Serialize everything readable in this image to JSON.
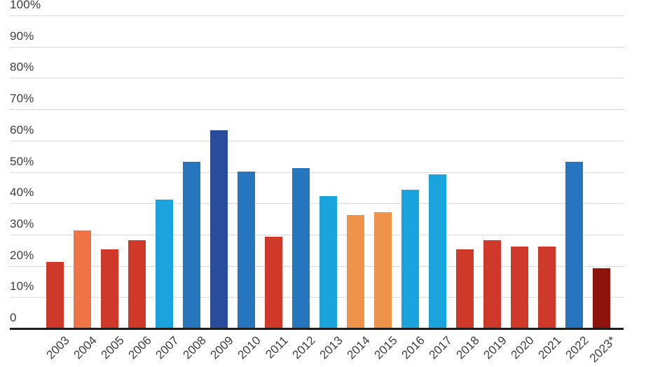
{
  "chart_data": {
    "type": "bar",
    "title": "",
    "xlabel": "",
    "ylabel": "",
    "ylim": [
      0,
      100
    ],
    "grid": "horizontal-gridlines",
    "legend": "none",
    "categories": [
      "2003",
      "2004",
      "2005",
      "2006",
      "2007",
      "2008",
      "2009",
      "2010",
      "2011",
      "2012",
      "2013",
      "2014",
      "2015",
      "2016",
      "2017",
      "2018",
      "2019",
      "2020",
      "2021",
      "2022",
      "2023*"
    ],
    "values": [
      21,
      31,
      25,
      28,
      41,
      53,
      63,
      50,
      29,
      51,
      42,
      36,
      37,
      44,
      49,
      25,
      28,
      26,
      26,
      53,
      19
    ],
    "bar_colors": [
      "#cf392a",
      "#ee7345",
      "#cf392a",
      "#cf392a",
      "#1ba3dd",
      "#2776bd",
      "#2b4b9b",
      "#2776bd",
      "#cf392a",
      "#2776bd",
      "#1ba3dd",
      "#f0934a",
      "#f0934a",
      "#1ba3dd",
      "#1ba3dd",
      "#cf392a",
      "#cf392a",
      "#cf392a",
      "#cf392a",
      "#2776bd",
      "#8d140c"
    ],
    "ytick_values": [
      0,
      10,
      20,
      30,
      40,
      50,
      60,
      70,
      80,
      90,
      100
    ],
    "ytick_labels": [
      "0",
      "10%",
      "20%",
      "30%",
      "40%",
      "50%",
      "60%",
      "70%",
      "80%",
      "90%",
      "100%"
    ]
  },
  "style_colors": {
    "background": "#ffffff",
    "gridline": "#d9d9d9",
    "axis_line": "#1c1c1c",
    "tick_text": "#3d3d3d"
  }
}
